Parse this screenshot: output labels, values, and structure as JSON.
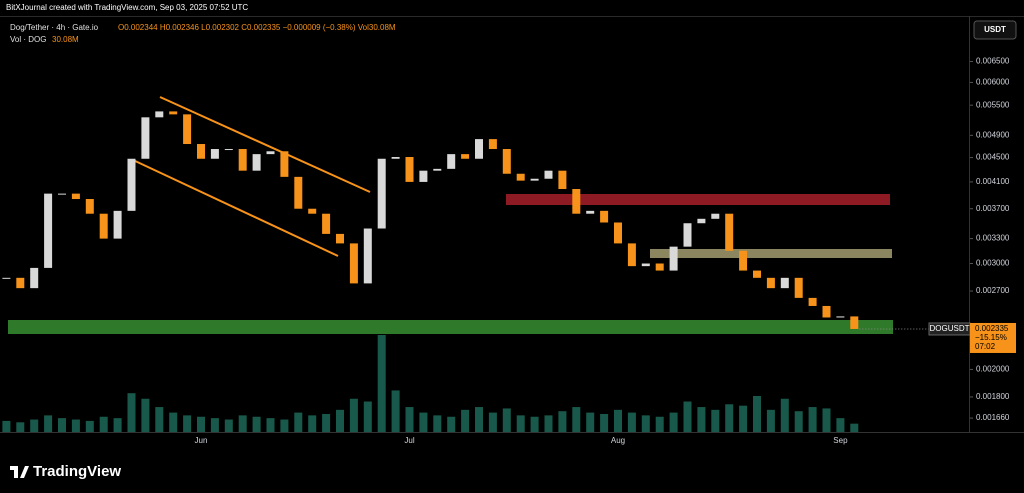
{
  "header": {
    "credit": "BitXJournal created with TradingView.com, Sep 03, 2025 07:52 UTC",
    "symbol": "Dog/Tether · 4h · Gate.io",
    "ohlc": "O0.002344 H0.002346 L0.002302 C0.002335 −0.000009 (−0.38%) Vol30.08M",
    "volume_label": "Vol · DOG",
    "volume_value": "30.08M",
    "currency": "USDT"
  },
  "chart_data": {
    "type": "candlestick",
    "log": true,
    "symbol_tag": "DOGUSDT",
    "price_label": "0.002335",
    "change_label": "−15.15%",
    "countdown_label": "07:02",
    "up_color": "#d9d9d9",
    "down_color": "#f7931a",
    "volume_color": "#1f6f5e",
    "categories": [
      null,
      null,
      null,
      null,
      null,
      null,
      null,
      null,
      null,
      null,
      null,
      null,
      null,
      null,
      "Jun",
      null,
      null,
      null,
      null,
      null,
      null,
      null,
      null,
      null,
      null,
      null,
      null,
      null,
      null,
      "Jul",
      null,
      null,
      null,
      null,
      null,
      null,
      null,
      null,
      null,
      null,
      null,
      null,
      null,
      null,
      "Aug",
      null,
      null,
      null,
      null,
      null,
      null,
      null,
      null,
      null,
      null,
      null,
      null,
      null,
      null,
      null,
      "Sep",
      null
    ],
    "series": [
      {
        "name": "Close",
        "values": [
          0.00284,
          0.00273,
          0.00295,
          0.00392,
          0.00392,
          0.00384,
          0.00363,
          0.0033,
          0.00367,
          0.00448,
          0.00525,
          0.00537,
          0.00531,
          0.00474,
          0.00448,
          0.00465,
          0.00465,
          0.00428,
          0.00456,
          0.00461,
          0.00418,
          0.0037,
          0.00363,
          0.00336,
          0.00324,
          0.00278,
          0.00343,
          0.00448,
          0.00451,
          0.0041,
          0.00428,
          0.00431,
          0.00456,
          0.00448,
          0.00483,
          0.00465,
          0.00423,
          0.00412,
          0.00415,
          0.00428,
          0.00399,
          0.00363,
          0.00367,
          0.00351,
          0.00324,
          0.00297,
          0.003,
          0.00292,
          0.0032,
          0.0035,
          0.00356,
          0.00363,
          0.00315,
          0.00292,
          0.00284,
          0.00273,
          0.00284,
          0.00263,
          0.00255,
          0.00244,
          0.00245,
          0.002335
        ]
      },
      {
        "name": "Volume",
        "values": [
          40,
          35,
          45,
          60,
          50,
          45,
          40,
          55,
          50,
          140,
          120,
          90,
          70,
          60,
          55,
          50,
          45,
          60,
          55,
          50,
          45,
          70,
          60,
          65,
          80,
          120,
          110,
          350,
          150,
          90,
          70,
          60,
          55,
          80,
          90,
          70,
          85,
          60,
          55,
          60,
          75,
          90,
          70,
          65,
          80,
          70,
          60,
          55,
          70,
          110,
          90,
          80,
          100,
          95,
          130,
          80,
          120,
          75,
          90,
          85,
          50,
          30.08
        ]
      }
    ],
    "ylim": [
      0.001574,
      0.00762
    ],
    "yticks": [
      {
        "value": 0.0065,
        "label": "0.006500"
      },
      {
        "value": 0.006,
        "label": "0.006000"
      },
      {
        "value": 0.0055,
        "label": "0.005500"
      },
      {
        "value": 0.0049,
        "label": "0.004900"
      },
      {
        "value": 0.0045,
        "label": "0.004500"
      },
      {
        "value": 0.0041,
        "label": "0.004100"
      },
      {
        "value": 0.0037,
        "label": "0.003700"
      },
      {
        "value": 0.0033,
        "label": "0.003300"
      },
      {
        "value": 0.003,
        "label": "0.003000"
      },
      {
        "value": 0.0027,
        "label": "0.002700"
      },
      {
        "value": 0.002,
        "label": "0.002000"
      },
      {
        "value": 0.0018,
        "label": "0.001800"
      },
      {
        "value": 0.00166,
        "label": "0.001660"
      }
    ]
  },
  "footer": {
    "brand": "TradingView"
  }
}
